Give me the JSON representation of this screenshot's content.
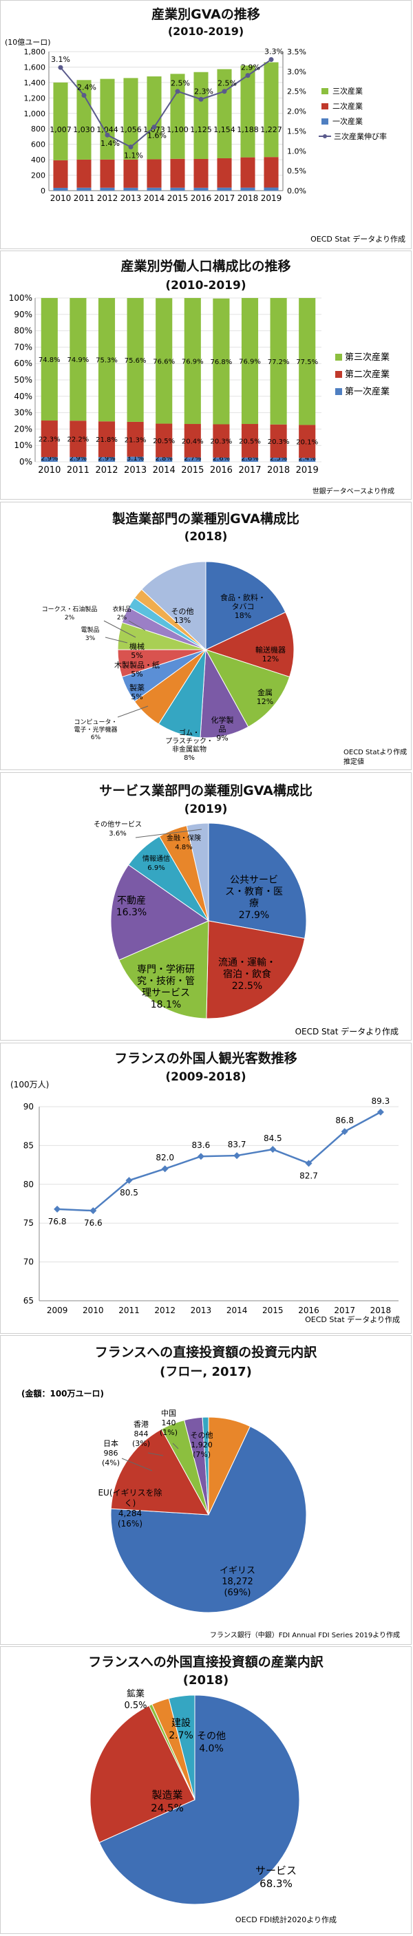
{
  "charts": [
    {
      "type": "bar",
      "title": "産業別GVAの推移",
      "subtitle": "(2010-2019)",
      "y_unit": "(10億ユーロ)",
      "source": "OECD Stat データより作成",
      "categories": [
        "2010",
        "2011",
        "2012",
        "2013",
        "2014",
        "2015",
        "2016",
        "2017",
        "2018",
        "2019"
      ],
      "series": [
        {
          "name": "一次産業",
          "values": [
            36,
            38,
            38,
            37,
            38,
            38,
            37,
            39,
            39,
            40
          ],
          "color": "#4f7fc1"
        },
        {
          "name": "二次産業",
          "values": [
            357,
            364,
            365,
            365,
            368,
            374,
            373,
            380,
            392,
            395
          ],
          "color": "#c0392b"
        },
        {
          "name": "三次産業",
          "values": [
            1007,
            1030,
            1044,
            1056,
            1073,
            1100,
            1125,
            1154,
            1188,
            1227
          ],
          "color": "#8cbf3f"
        }
      ],
      "bar_labels": [
        "1,007",
        "1,030",
        "1,044",
        "1,056",
        "1,073",
        "1,100",
        "1,125",
        "1,154",
        "1,188",
        "1,227"
      ],
      "line": {
        "name": "三次産業伸び率",
        "values": [
          3.1,
          2.4,
          1.4,
          1.1,
          1.6,
          2.5,
          2.3,
          2.5,
          2.9,
          3.3
        ],
        "labels": [
          "3.1%",
          "2.4%",
          "1.4%",
          "1.1%",
          "1.6%",
          "2.5%",
          "2.3%",
          "2.5%",
          "2.9%",
          "3.3%"
        ],
        "color": "#5a5a8c"
      },
      "ylim": [
        0,
        1800
      ],
      "y_ticks": [
        "0",
        "200",
        "400",
        "600",
        "800",
        "1,000",
        "1,200",
        "1,400",
        "1,600",
        "1,800"
      ],
      "y2lim": [
        0,
        3.5
      ],
      "y2_ticks": [
        "0.0%",
        "0.5%",
        "1.0%",
        "1.5%",
        "2.0%",
        "2.5%",
        "3.0%",
        "3.5%"
      ],
      "legend": [
        "三次産業",
        "二次産業",
        "一次産業",
        "三次産業伸び率"
      ]
    },
    {
      "type": "bar",
      "title": "産業別労働人口構成比の推移",
      "subtitle": "(2010-2019)",
      "source": "世銀データベースより作成",
      "categories": [
        "2010",
        "2011",
        "2012",
        "2013",
        "2014",
        "2015",
        "2016",
        "2017",
        "2018",
        "2019"
      ],
      "series": [
        {
          "name": "第一次産業",
          "values": [
            2.9,
            2.9,
            2.9,
            3.1,
            2.8,
            2.7,
            2.6,
            2.6,
            2.5,
            2.4
          ],
          "labels": [
            "2.9%",
            "2.9%",
            "2.9%",
            "3.1%",
            "2.8%",
            "2.7%",
            "2.6%",
            "2.6%",
            "2.5%",
            "2.4%"
          ],
          "color": "#4f7fc1"
        },
        {
          "name": "第二次産業",
          "values": [
            22.3,
            22.2,
            21.8,
            21.3,
            20.5,
            20.4,
            20.3,
            20.5,
            20.3,
            20.1
          ],
          "labels": [
            "22.3%",
            "22.2%",
            "21.8%",
            "21.3%",
            "20.5%",
            "20.4%",
            "20.3%",
            "20.5%",
            "20.3%",
            "20.1%"
          ],
          "color": "#c0392b"
        },
        {
          "name": "第三次産業",
          "values": [
            74.8,
            74.9,
            75.3,
            75.6,
            76.6,
            76.9,
            76.8,
            76.9,
            77.2,
            77.5
          ],
          "labels": [
            "74.8%",
            "74.9%",
            "75.3%",
            "75.6%",
            "76.6%",
            "76.9%",
            "76.8%",
            "76.9%",
            "77.2%",
            "77.5%"
          ],
          "color": "#8cbf3f"
        }
      ],
      "ylim": [
        0,
        100
      ],
      "y_ticks": [
        "0%",
        "10%",
        "20%",
        "30%",
        "40%",
        "50%",
        "60%",
        "70%",
        "80%",
        "90%",
        "100%"
      ],
      "legend": [
        "第三次産業",
        "第二次産業",
        "第一次産業"
      ]
    },
    {
      "type": "pie",
      "title": "製造業部門の業種別GVA構成比",
      "subtitle": "(2018)",
      "source": "OECD Statより作成",
      "note": "推定値",
      "slices": [
        {
          "label": "食品・飲料・タバコ",
          "value": 18,
          "pct": "18%",
          "color": "#3f6fb5"
        },
        {
          "label": "輸送機器",
          "value": 12,
          "pct": "12%",
          "color": "#c0392b"
        },
        {
          "label": "金属",
          "value": 12,
          "pct": "12%",
          "color": "#8cbf3f"
        },
        {
          "label": "化学製品",
          "value": 9,
          "pct": "9%",
          "color": "#7b5aa6"
        },
        {
          "label": "ゴム・プラスチック・非金属鉱物",
          "value": 8,
          "pct": "8%",
          "color": "#35a6c2"
        },
        {
          "label": "コンピュータ・電子・光学機器",
          "value": 6,
          "pct": "6%",
          "color": "#e8862a"
        },
        {
          "label": "製薬",
          "value": 5,
          "pct": "5%",
          "color": "#5b8fd6"
        },
        {
          "label": "木製製品・紙",
          "value": 5,
          "pct": "5%",
          "color": "#d9534f"
        },
        {
          "label": "機械",
          "value": 5,
          "pct": "5%",
          "color": "#a9cf54"
        },
        {
          "label": "電製品",
          "value": 3,
          "pct": "3%",
          "color": "#9b7fc6"
        },
        {
          "label": "コークス・石油製品",
          "value": 2,
          "pct": "2%",
          "color": "#5bc0de"
        },
        {
          "label": "衣料品",
          "value": 2,
          "pct": "2%",
          "color": "#f0ad4e"
        },
        {
          "label": "その他",
          "value": 13,
          "pct": "13%",
          "color": "#a9bde0"
        }
      ]
    },
    {
      "type": "pie",
      "title": "サービス業部門の業種別GVA構成比",
      "subtitle": "(2019)",
      "source": "OECD Stat データより作成",
      "slices": [
        {
          "label": "公共サービス・教育・医療",
          "value": 27.9,
          "pct": "27.9%",
          "color": "#3f6fb5"
        },
        {
          "label": "流通・運輸・宿泊・飲食",
          "value": 22.5,
          "pct": "22.5%",
          "color": "#c0392b"
        },
        {
          "label": "専門・学術研究・技術・管理サービス",
          "value": 18.1,
          "pct": "18.1%",
          "color": "#8cbf3f"
        },
        {
          "label": "不動産",
          "value": 16.3,
          "pct": "16.3%",
          "color": "#7b5aa6"
        },
        {
          "label": "情報通信",
          "value": 6.9,
          "pct": "6.9%",
          "color": "#35a6c2"
        },
        {
          "label": "金融・保険",
          "value": 4.8,
          "pct": "4.8%",
          "color": "#e8862a"
        },
        {
          "label": "その他サービス",
          "value": 3.6,
          "pct": "3.6%",
          "color": "#a9bde0"
        }
      ]
    },
    {
      "type": "line",
      "title": "フランスの外国人観光客数推移",
      "subtitle": "(2009-2018)",
      "y_unit": "(100万人)",
      "source": "OECD Stat データより作成",
      "x": [
        "2009",
        "2010",
        "2011",
        "2012",
        "2013",
        "2014",
        "2015",
        "2016",
        "2017",
        "2018"
      ],
      "values": [
        76.8,
        76.6,
        80.5,
        82.0,
        83.6,
        83.7,
        84.5,
        82.7,
        86.8,
        89.3
      ],
      "labels": [
        "76.8",
        "76.6",
        "80.5",
        "82.0",
        "83.6",
        "83.7",
        "84.5",
        "82.7",
        "86.8",
        "89.3"
      ],
      "ylim": [
        65,
        90
      ],
      "y_ticks": [
        "65",
        "70",
        "75",
        "80",
        "85",
        "90"
      ],
      "color": "#4f7fc1"
    },
    {
      "type": "pie",
      "title": "フランスへの直接投資額の投資元内訳",
      "subtitle": "(フロー, 2017)",
      "unit": "(金額：100万ユーロ)",
      "source": "フランス銀行（中銀）FDI Annual FDI Series 2019より作成",
      "slices": [
        {
          "label": "イギリス",
          "amount": "18,272",
          "pct": "(69%)",
          "value": 69,
          "color": "#3f6fb5"
        },
        {
          "label": "EU(イギリスを除く)",
          "amount": "4,284",
          "pct": "(16%)",
          "value": 16,
          "color": "#c0392b"
        },
        {
          "label": "日本",
          "amount": "986",
          "pct": "(4%)",
          "value": 4,
          "color": "#8cbf3f"
        },
        {
          "label": "香港",
          "amount": "844",
          "pct": "(3%)",
          "value": 3,
          "color": "#7b5aa6"
        },
        {
          "label": "中国",
          "amount": "140",
          "pct": "(1%)",
          "value": 1,
          "color": "#35a6c2"
        },
        {
          "label": "その他",
          "amount": "1,920",
          "pct": "(7%)",
          "value": 7,
          "color": "#e8862a"
        }
      ]
    },
    {
      "type": "pie",
      "title": "フランスへの外国直接投資額の産業内訳",
      "subtitle": "(2018)",
      "source": "OECD FDI統計2020より作成",
      "slices": [
        {
          "label": "サービス",
          "value": 68.3,
          "pct": "68.3%",
          "color": "#3f6fb5"
        },
        {
          "label": "製造業",
          "value": 24.5,
          "pct": "24.5%",
          "color": "#c0392b"
        },
        {
          "label": "鉱業",
          "value": 0.5,
          "pct": "0.5%",
          "color": "#8cbf3f"
        },
        {
          "label": "建設",
          "value": 2.7,
          "pct": "2.7%",
          "color": "#e8862a"
        },
        {
          "label": "その他",
          "value": 4.0,
          "pct": "4.0%",
          "color": "#35a6c2"
        }
      ]
    }
  ]
}
